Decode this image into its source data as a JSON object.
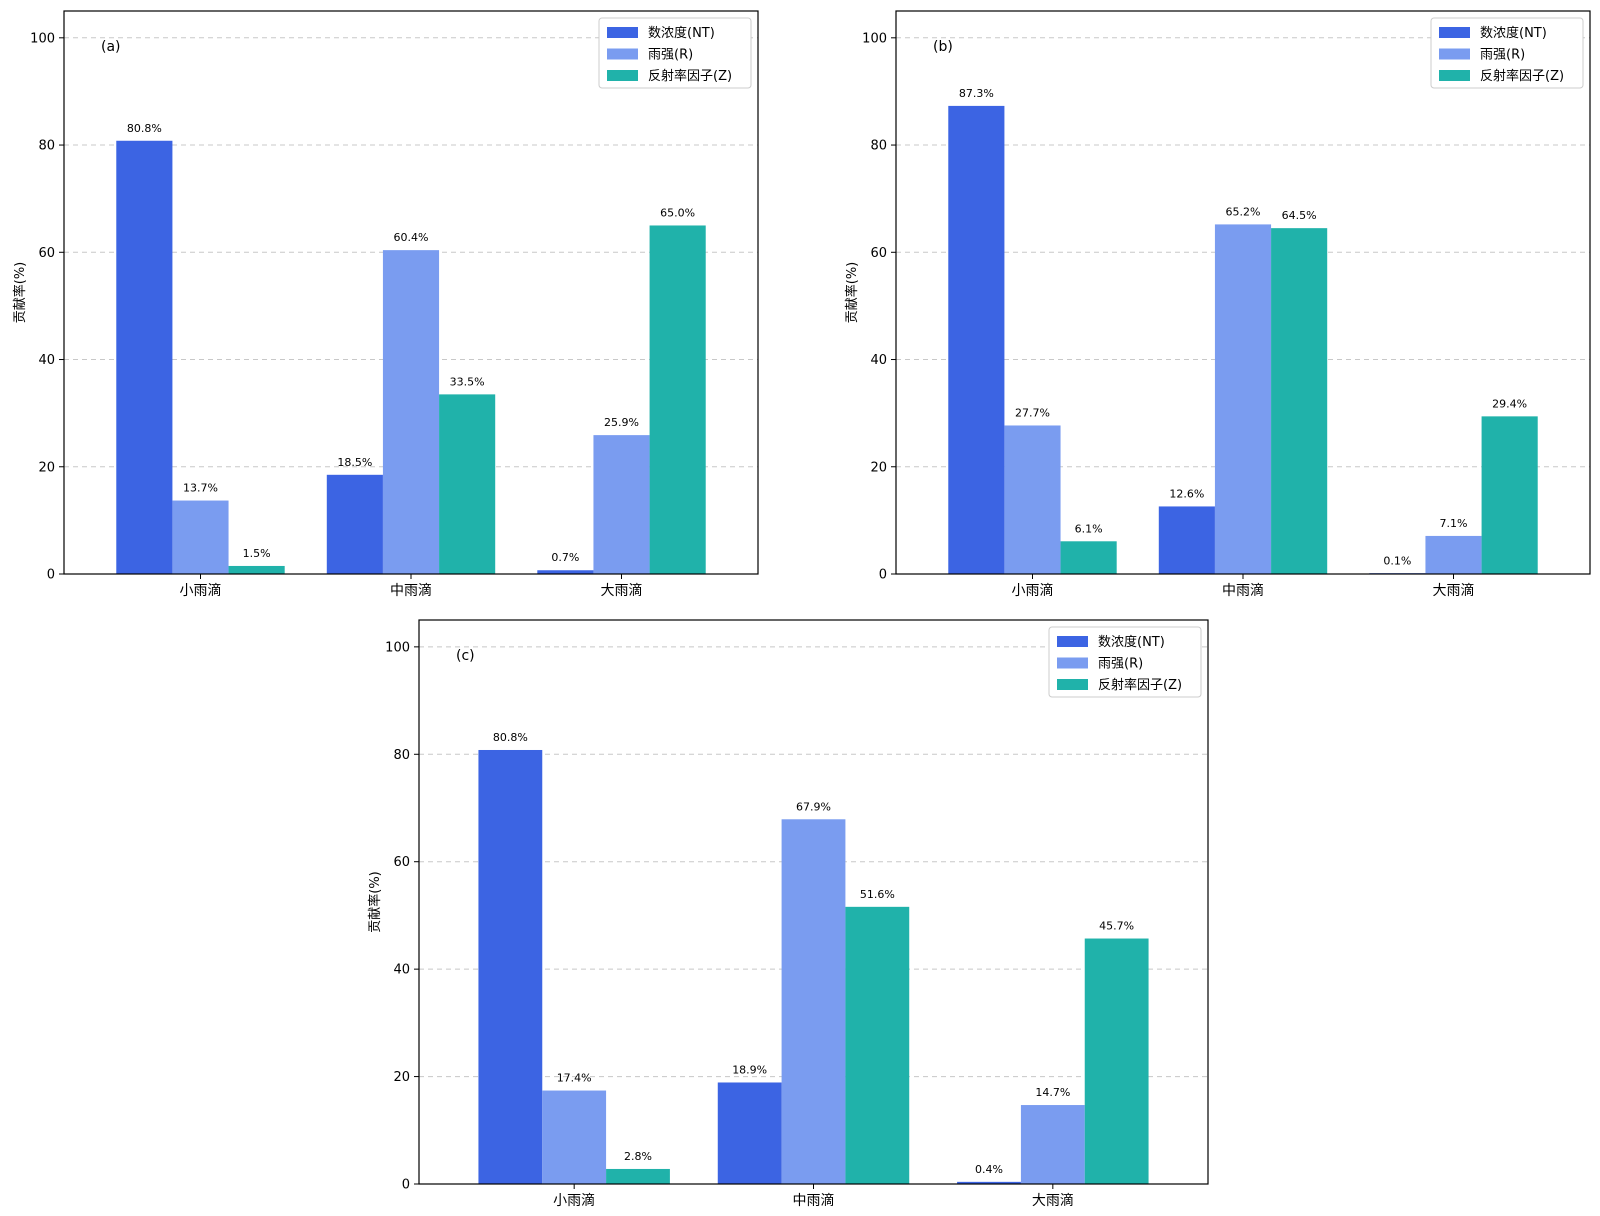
{
  "chart_data": [
    {
      "type": "bar",
      "panel": "(a)",
      "categories": [
        "小雨滴",
        "中雨滴",
        "大雨滴"
      ],
      "series": [
        {
          "name": "数浓度(NT)",
          "values": [
            80.8,
            18.5,
            0.7
          ],
          "labels": [
            "80.8%",
            "18.5%",
            "0.7%"
          ]
        },
        {
          "name": "雨强(R)",
          "values": [
            13.7,
            60.4,
            25.9
          ],
          "labels": [
            "13.7%",
            "60.4%",
            "25.9%"
          ]
        },
        {
          "name": "反射率因子(Z)",
          "values": [
            1.5,
            33.5,
            65.0
          ],
          "labels": [
            "1.5%",
            "33.5%",
            "65.0%"
          ]
        }
      ],
      "ylabel": "贡献率(%)",
      "ylim": [
        0,
        105
      ],
      "yticks": [
        "0",
        "20",
        "40",
        "60",
        "80",
        "100"
      ],
      "grid": "y-dashed",
      "legend": "top-right"
    },
    {
      "type": "bar",
      "panel": "(b)",
      "categories": [
        "小雨滴",
        "中雨滴",
        "大雨滴"
      ],
      "series": [
        {
          "name": "数浓度(NT)",
          "values": [
            87.3,
            12.6,
            0.1
          ],
          "labels": [
            "87.3%",
            "12.6%",
            "0.1%"
          ]
        },
        {
          "name": "雨强(R)",
          "values": [
            27.7,
            65.2,
            7.1
          ],
          "labels": [
            "27.7%",
            "65.2%",
            "7.1%"
          ]
        },
        {
          "name": "反射率因子(Z)",
          "values": [
            6.1,
            64.5,
            29.4
          ],
          "labels": [
            "6.1%",
            "64.5%",
            "29.4%"
          ]
        }
      ],
      "ylabel": "贡献率(%)",
      "ylim": [
        0,
        105
      ],
      "yticks": [
        "0",
        "20",
        "40",
        "60",
        "80",
        "100"
      ],
      "grid": "y-dashed",
      "legend": "top-right"
    },
    {
      "type": "bar",
      "panel": "(c)",
      "categories": [
        "小雨滴",
        "中雨滴",
        "大雨滴"
      ],
      "series": [
        {
          "name": "数浓度(NT)",
          "values": [
            80.8,
            18.9,
            0.4
          ],
          "labels": [
            "80.8%",
            "18.9%",
            "0.4%"
          ]
        },
        {
          "name": "雨强(R)",
          "values": [
            17.4,
            67.9,
            14.7
          ],
          "labels": [
            "17.4%",
            "67.9%",
            "14.7%"
          ]
        },
        {
          "name": "反射率因子(Z)",
          "values": [
            2.8,
            51.6,
            45.7
          ],
          "labels": [
            "2.8%",
            "51.6%",
            "45.7%"
          ]
        }
      ],
      "ylabel": "贡献率(%)",
      "ylim": [
        0,
        105
      ],
      "yticks": [
        "0",
        "20",
        "40",
        "60",
        "80",
        "100"
      ],
      "grid": "y-dashed",
      "legend": "top-right"
    }
  ],
  "colors": {
    "数浓度(NT)": "#3c64e3",
    "雨强(R)": "#7a9cf0",
    "反射率因子(Z)": "#20b2aa"
  }
}
